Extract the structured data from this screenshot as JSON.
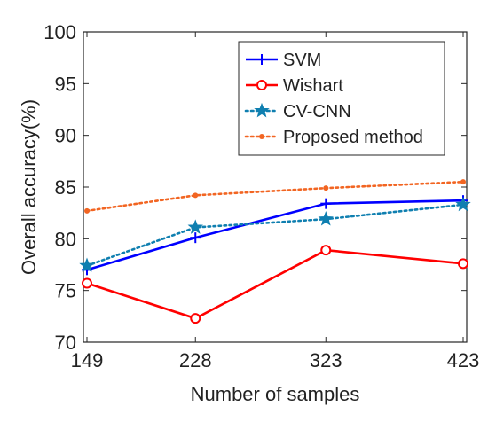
{
  "chart_data": {
    "type": "line",
    "xlabel": "Number of samples",
    "ylabel": "Overall accuracy(%)",
    "x": [
      149,
      228,
      323,
      423
    ],
    "x_tick_labels": [
      "149",
      "228",
      "323",
      "423"
    ],
    "ylim": [
      70,
      100
    ],
    "y_ticks": [
      70,
      75,
      80,
      85,
      90,
      95,
      100
    ],
    "y_tick_labels": [
      "70",
      "75",
      "80",
      "85",
      "90",
      "95",
      "100"
    ],
    "grid": false,
    "legend_position": "top-right",
    "series": [
      {
        "name": "SVM",
        "values": [
          77.0,
          80.1,
          83.4,
          83.7
        ],
        "color": "#0000ff",
        "marker": "plus",
        "line_style": "solid"
      },
      {
        "name": "Wishart",
        "values": [
          75.7,
          72.3,
          78.9,
          77.6
        ],
        "color": "#ff0000",
        "marker": "circle",
        "line_style": "solid"
      },
      {
        "name": "CV-CNN",
        "values": [
          77.4,
          81.1,
          81.9,
          83.3
        ],
        "color": "#0f7fb0",
        "marker": "star",
        "line_style": "dotted"
      },
      {
        "name": "Proposed method",
        "values": [
          82.7,
          84.2,
          84.9,
          85.5
        ],
        "color": "#f26522",
        "marker": "dot",
        "line_style": "dotted"
      }
    ]
  }
}
